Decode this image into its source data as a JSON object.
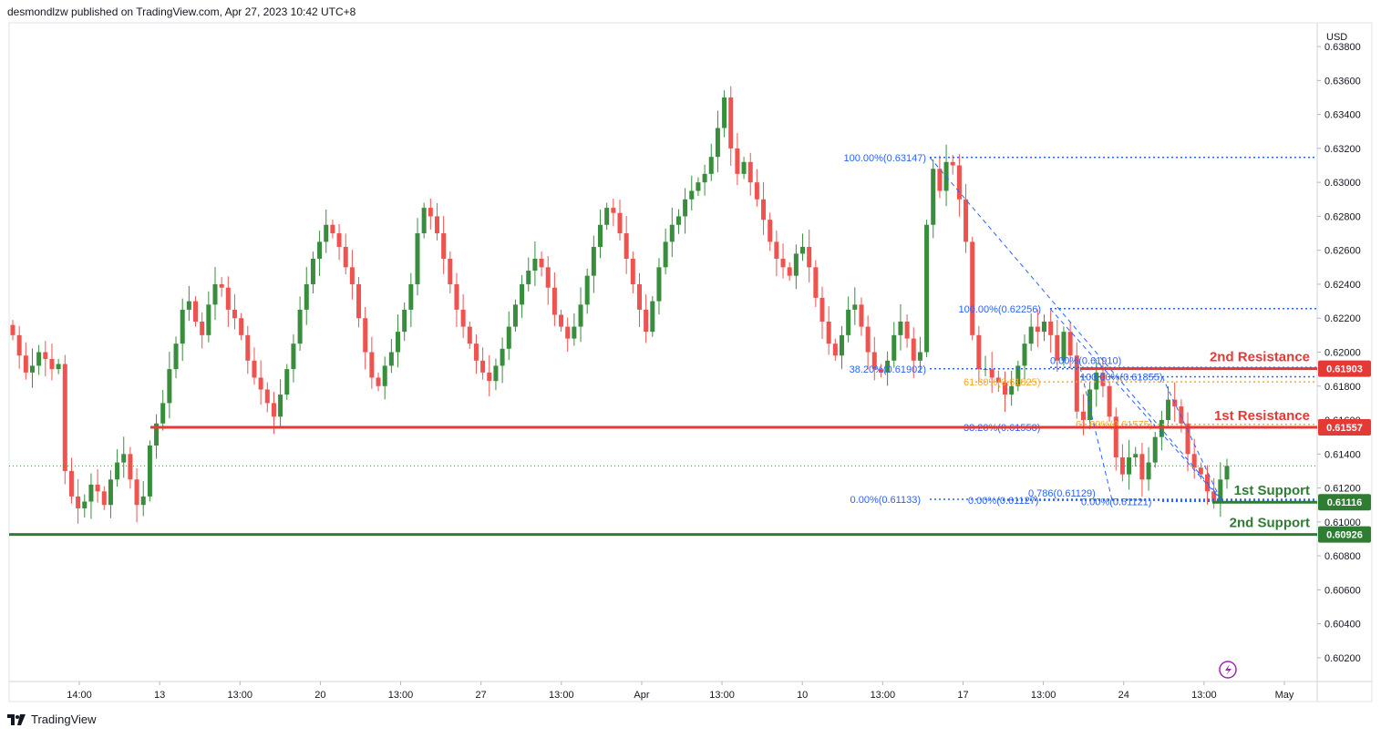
{
  "header": {
    "text": "desmondlzw published on TradingView.com, Apr 27, 2023 10:42 UTC+8"
  },
  "footer": {
    "brand": "TradingView"
  },
  "colors": {
    "up": "#388e3c",
    "down": "#ef5350",
    "resistance": "#e53935",
    "support": "#2e7d32",
    "fib": "#2962ff",
    "fib_gold": "#f9a825"
  },
  "chart_data": {
    "type": "candlestick",
    "currency": "USD",
    "ylim": [
      0.6006,
      0.6394
    ],
    "y_ticks": [
      "0.63800",
      "0.63600",
      "0.63400",
      "0.63200",
      "0.63000",
      "0.62800",
      "0.62600",
      "0.62400",
      "0.62200",
      "0.62000",
      "0.61800",
      "0.61600",
      "0.61400",
      "0.61200",
      "0.61000",
      "0.60800",
      "0.60600",
      "0.60400",
      "0.60200"
    ],
    "x_labels": [
      "14:00",
      "13",
      "13:00",
      "20",
      "13:00",
      "27",
      "13:00",
      "Apr",
      "13:00",
      "10",
      "13:00",
      "17",
      "13:00",
      "24",
      "13:00",
      "May"
    ],
    "closes": [
      0.621,
      0.6198,
      0.6188,
      0.6192,
      0.62,
      0.6196,
      0.619,
      0.6193,
      0.613,
      0.6115,
      0.6108,
      0.6112,
      0.6122,
      0.6118,
      0.611,
      0.6125,
      0.6135,
      0.614,
      0.6125,
      0.611,
      0.6115,
      0.6145,
      0.6158,
      0.617,
      0.619,
      0.6205,
      0.6225,
      0.623,
      0.6218,
      0.621,
      0.6228,
      0.624,
      0.6238,
      0.6225,
      0.622,
      0.621,
      0.6195,
      0.6185,
      0.6178,
      0.617,
      0.6162,
      0.6175,
      0.619,
      0.6205,
      0.6225,
      0.624,
      0.6255,
      0.6265,
      0.6275,
      0.627,
      0.6262,
      0.625,
      0.624,
      0.622,
      0.62,
      0.6185,
      0.618,
      0.6192,
      0.62,
      0.6212,
      0.6225,
      0.624,
      0.627,
      0.6285,
      0.628,
      0.627,
      0.6255,
      0.624,
      0.6225,
      0.6215,
      0.6205,
      0.6195,
      0.6188,
      0.6183,
      0.6192,
      0.6202,
      0.6215,
      0.6228,
      0.624,
      0.6248,
      0.6255,
      0.625,
      0.6238,
      0.6222,
      0.6215,
      0.6208,
      0.6215,
      0.6228,
      0.6245,
      0.6262,
      0.6275,
      0.6285,
      0.6282,
      0.627,
      0.6255,
      0.624,
      0.6225,
      0.6212,
      0.623,
      0.625,
      0.6265,
      0.6275,
      0.628,
      0.629,
      0.6295,
      0.63,
      0.6305,
      0.6315,
      0.6332,
      0.635,
      0.632,
      0.6305,
      0.6312,
      0.63,
      0.629,
      0.6278,
      0.6265,
      0.6255,
      0.625,
      0.6245,
      0.6258,
      0.6262,
      0.625,
      0.6232,
      0.6218,
      0.6205,
      0.6198,
      0.621,
      0.6225,
      0.6228,
      0.6215,
      0.62,
      0.619,
      0.6188,
      0.6195,
      0.621,
      0.6218,
      0.6208,
      0.6195,
      0.62,
      0.6275,
      0.6308,
      0.6295,
      0.6312,
      0.631,
      0.629,
      0.6265,
      0.621,
      0.619,
      0.619,
      0.6185,
      0.6182,
      0.6175,
      0.618,
      0.6192,
      0.6205,
      0.6215,
      0.6212,
      0.6218,
      0.621,
      0.6195,
      0.6212,
      0.6198,
      0.6165,
      0.616,
      0.6178,
      0.6188,
      0.618,
      0.6162,
      0.6138,
      0.6128,
      0.6138,
      0.614,
      0.6125,
      0.6135,
      0.615,
      0.616,
      0.6172,
      0.6168,
      0.6158,
      0.614,
      0.6132,
      0.6128,
      0.6118,
      0.6112,
      0.6125,
      0.6133
    ],
    "levels": [
      {
        "label": "2nd Resistance",
        "value": "0.61903",
        "color_key": "resistance"
      },
      {
        "label": "1st Resistance",
        "value": "0.61557",
        "color_key": "resistance"
      },
      {
        "label": "1st Support",
        "value": "0.61116",
        "color_key": "support"
      },
      {
        "label": "2nd Support",
        "value": "0.60926",
        "color_key": "support"
      }
    ],
    "fib_labels": [
      {
        "text": "100.00%(0.63147)",
        "price": 0.63147
      },
      {
        "text": "100.00%(0.62256)",
        "price": 0.62256
      },
      {
        "text": "38.20%(0.61902)",
        "price": 0.61902
      },
      {
        "text": "0.00%(0.61910)",
        "price": 0.6191
      },
      {
        "text": "100.00%(0.61855)",
        "price": 0.61855
      },
      {
        "text": "61.80%(0.61825)",
        "price": 0.61825
      },
      {
        "text": "38.20%(0.61558)",
        "price": 0.61558
      },
      {
        "text": "61.80%(0.61575)",
        "price": 0.61575
      },
      {
        "text": "0.786(0.61129)",
        "price": 0.61129
      },
      {
        "text": "0.00%(0.61133)",
        "price": 0.61133
      },
      {
        "text": "0.00%(0.61127)",
        "price": 0.61127
      },
      {
        "text": "0.00%(0.61121)",
        "price": 0.61121
      }
    ]
  }
}
